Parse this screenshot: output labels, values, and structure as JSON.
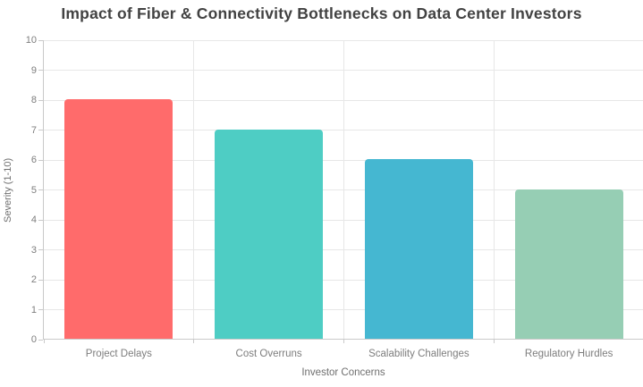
{
  "title": "Impact of Fiber & Connectivity Bottlenecks on Data Center Investors",
  "chart_data": {
    "type": "bar",
    "categories": [
      "Project Delays",
      "Cost Overruns",
      "Scalability Challenges",
      "Regulatory Hurdles"
    ],
    "values": [
      8,
      7,
      6,
      5
    ],
    "title": "Impact of Fiber & Connectivity Bottlenecks on Data Center Investors",
    "xlabel": "Investor Concerns",
    "ylabel": "Severity (1-10)",
    "ylim": [
      0,
      10
    ],
    "ytick_step": 1,
    "grid": true,
    "legend": "none",
    "bar_colors": [
      "#FF6B6B",
      "#4ECDC4",
      "#45B7D1",
      "#96CEB4"
    ],
    "gridline_color": "#e7e7e7",
    "axis_line_color": "#c9c9c9",
    "title_color": "#424242",
    "tick_label_color": "#7d7d7d"
  }
}
